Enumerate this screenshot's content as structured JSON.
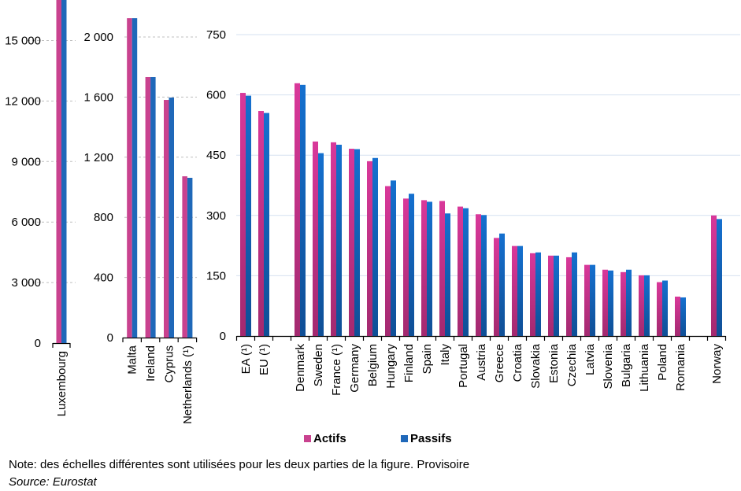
{
  "chart_data": {
    "type": "bar",
    "title": "",
    "legend": {
      "placement": "bottom",
      "entries": [
        {
          "name": "Actifs",
          "color": "#c9428f"
        },
        {
          "name": "Passifs",
          "color": "#1f68b9"
        }
      ]
    },
    "note": "Note: des échelles différentes sont utilisées pour les deux parties de la figure. Provisoire",
    "source": "Source: Eurostat",
    "panels": [
      {
        "id": "panel-luxembourg",
        "ylim": [
          0,
          17000
        ],
        "yticks": [
          0,
          3000,
          6000,
          9000,
          12000,
          15000
        ],
        "ytick_labels": [
          "0",
          "3 000",
          "6 000",
          "9 000",
          "12 000",
          "15 000"
        ],
        "grid": "dashed",
        "categories": [
          "Luxembourg"
        ],
        "series": [
          {
            "name": "Actifs",
            "values": [
              17100
            ],
            "clipped": true
          },
          {
            "name": "Passifs",
            "values": [
              17100
            ],
            "clipped": true
          }
        ]
      },
      {
        "id": "panel-high",
        "ylim": [
          0,
          2000
        ],
        "yticks": [
          0,
          400,
          800,
          1200,
          1600,
          2000
        ],
        "ytick_labels": [
          "0",
          "400",
          "800",
          "1 200",
          "1 600",
          "2 000"
        ],
        "grid": "dashed",
        "categories": [
          "Malta",
          "Ireland",
          "Cyprus",
          "Netherlands (¹)"
        ],
        "series": [
          {
            "name": "Actifs",
            "values": [
              2125,
              1733,
              1581,
              1073
            ]
          },
          {
            "name": "Passifs",
            "values": [
              2125,
              1733,
              1597,
              1063
            ]
          }
        ]
      },
      {
        "id": "panel-main",
        "ylim": [
          0,
          750
        ],
        "yticks": [
          0,
          150,
          300,
          450,
          600,
          750
        ],
        "ytick_labels": [
          "0",
          "150",
          "300",
          "450",
          "600",
          "750"
        ],
        "grid": "solid",
        "categories": [
          "EA (¹)",
          "EU (¹)",
          "",
          "Denmark",
          "Sweden",
          "France (¹)",
          "Germany",
          "Belgium",
          "Hungary",
          "Finland",
          "Spain",
          "Italy",
          "Portugal",
          "Austria",
          "Greece",
          "Croatia",
          "Slovakia",
          "Estonia",
          "Czechia",
          "Latvia",
          "Slovenia",
          "Bulgaria",
          "Lithuania",
          "Poland",
          "Romania",
          "",
          "Norway"
        ],
        "series": [
          {
            "name": "Actifs",
            "values": [
              605,
              560,
              null,
              629,
              484,
              482,
              466,
              435,
              373,
              342,
              338,
              336,
              322,
              303,
              244,
              224,
              206,
              200,
              196,
              177,
              165,
              159,
              151,
              134,
              98,
              null,
              300
            ]
          },
          {
            "name": "Passifs",
            "values": [
              598,
              555,
              null,
              625,
              455,
              476,
              465,
              443,
              387,
              354,
              334,
              305,
              318,
              301,
              255,
              224,
              208,
              200,
              208,
              177,
              163,
              165,
              151,
              138,
              96,
              null,
              291
            ]
          }
        ]
      }
    ]
  }
}
